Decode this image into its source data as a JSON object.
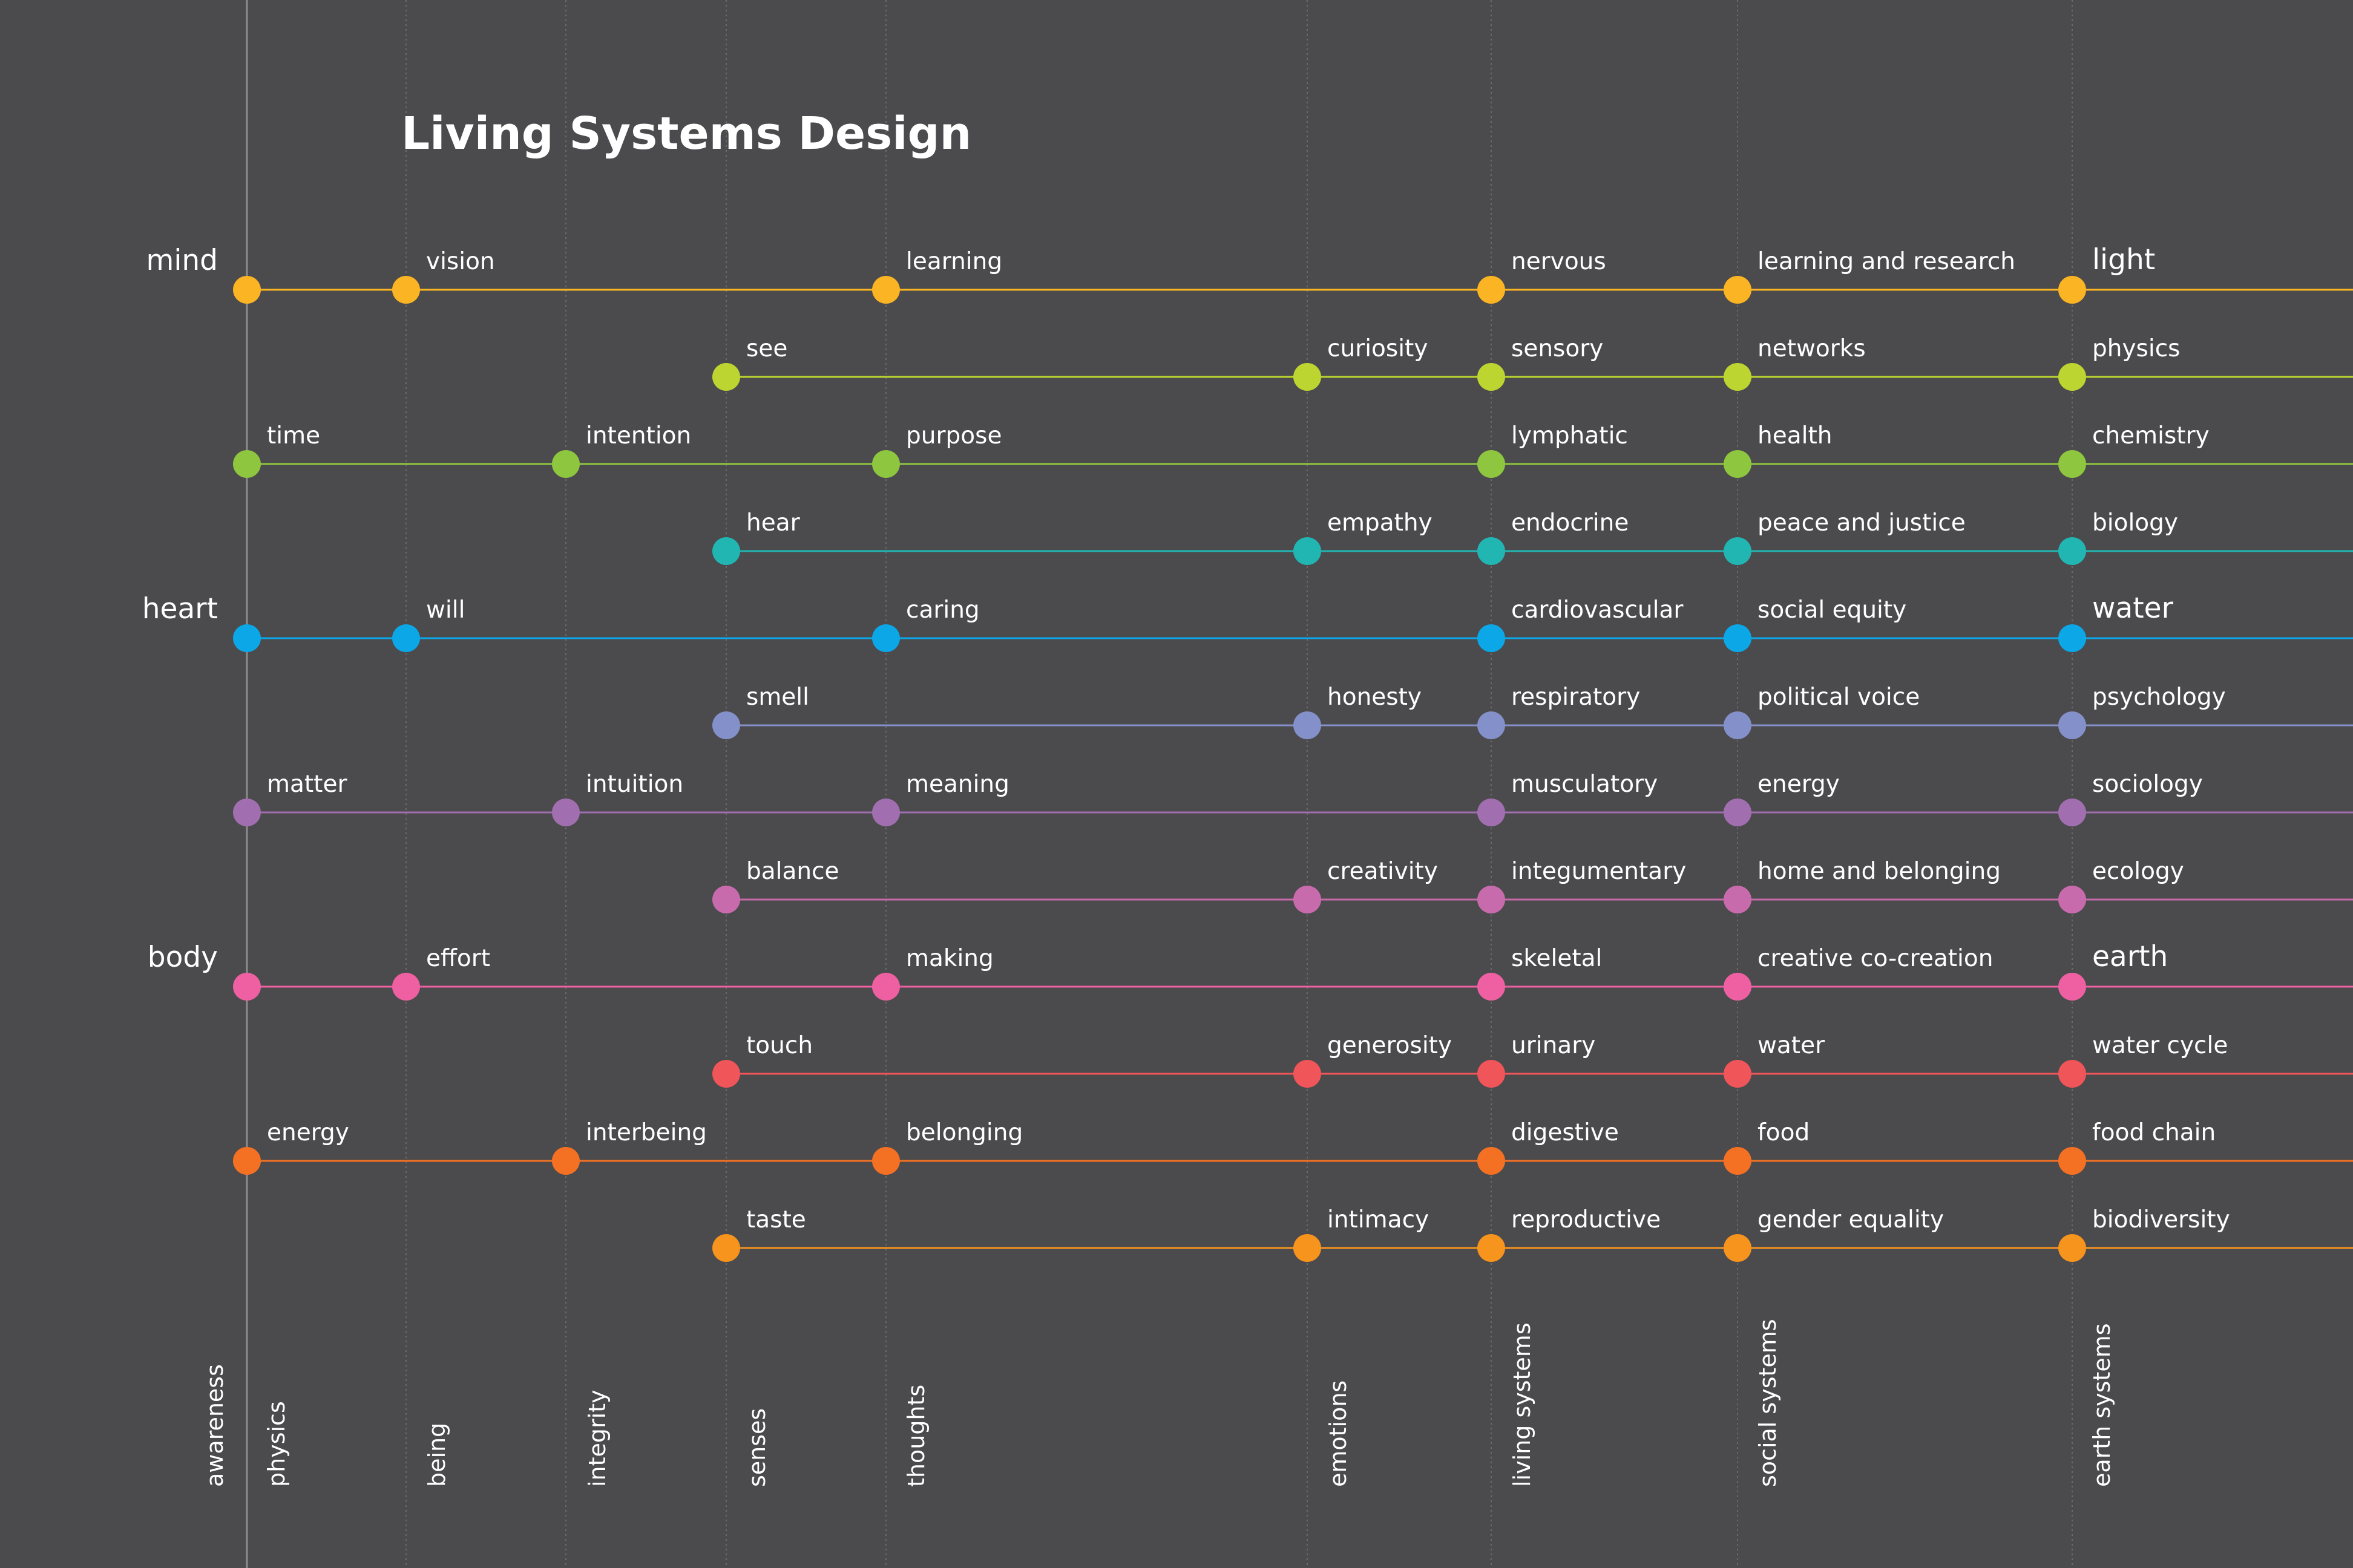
{
  "title": "Living Systems Design",
  "groups": [
    {
      "label": "mind",
      "row": 0
    },
    {
      "label": "heart",
      "row": 4
    },
    {
      "label": "body",
      "row": 8
    }
  ],
  "columns": [
    "awareness",
    "physics",
    "being",
    "integrity",
    "senses",
    "thoughts",
    "emotions",
    "living systems",
    "social systems",
    "earth systems"
  ],
  "rows": [
    {
      "color": "#fbb423",
      "nodes": [
        {
          "col": 0,
          "label": ""
        },
        {
          "col": 2,
          "label": "vision"
        },
        {
          "col": 5,
          "label": "learning"
        },
        {
          "col": 7,
          "label": "nervous"
        },
        {
          "col": 8,
          "label": "learning and research"
        },
        {
          "col": 9,
          "label": "light",
          "large": true
        }
      ]
    },
    {
      "color": "#bdd530",
      "nodes": [
        {
          "col": 4,
          "label": "see"
        },
        {
          "col": 6,
          "label": "curiosity"
        },
        {
          "col": 7,
          "label": "sensory"
        },
        {
          "col": 8,
          "label": "networks"
        },
        {
          "col": 9,
          "label": "physics"
        }
      ]
    },
    {
      "color": "#8ec63f",
      "nodes": [
        {
          "col": 1,
          "label": "time"
        },
        {
          "col": 3,
          "label": "intention"
        },
        {
          "col": 5,
          "label": "purpose"
        },
        {
          "col": 7,
          "label": "lymphatic"
        },
        {
          "col": 8,
          "label": "health"
        },
        {
          "col": 9,
          "label": "chemistry"
        }
      ]
    },
    {
      "color": "#22b6b3",
      "nodes": [
        {
          "col": 4,
          "label": "hear"
        },
        {
          "col": 6,
          "label": "empathy"
        },
        {
          "col": 7,
          "label": "endocrine"
        },
        {
          "col": 8,
          "label": "peace and justice"
        },
        {
          "col": 9,
          "label": "biology"
        }
      ]
    },
    {
      "color": "#0ca7e7",
      "nodes": [
        {
          "col": 0,
          "label": ""
        },
        {
          "col": 2,
          "label": "will"
        },
        {
          "col": 5,
          "label": "caring"
        },
        {
          "col": 7,
          "label": "cardiovascular"
        },
        {
          "col": 8,
          "label": "social equity"
        },
        {
          "col": 9,
          "label": "water",
          "large": true
        }
      ]
    },
    {
      "color": "#8490c9",
      "nodes": [
        {
          "col": 4,
          "label": "smell"
        },
        {
          "col": 6,
          "label": "honesty"
        },
        {
          "col": 7,
          "label": "respiratory"
        },
        {
          "col": 8,
          "label": "political voice"
        },
        {
          "col": 9,
          "label": "psychology"
        }
      ]
    },
    {
      "color": "#a16fb0",
      "nodes": [
        {
          "col": 0,
          "label": "matter"
        },
        {
          "col": 3,
          "label": "intuition"
        },
        {
          "col": 5,
          "label": "meaning"
        },
        {
          "col": 7,
          "label": "musculatory"
        },
        {
          "col": 8,
          "label": "energy"
        },
        {
          "col": 9,
          "label": "sociology"
        }
      ]
    },
    {
      "color": "#c86bac",
      "nodes": [
        {
          "col": 4,
          "label": "balance"
        },
        {
          "col": 6,
          "label": "creativity"
        },
        {
          "col": 7,
          "label": "integumentary"
        },
        {
          "col": 8,
          "label": "home and belonging"
        },
        {
          "col": 9,
          "label": "ecology"
        }
      ]
    },
    {
      "color": "#ee60a1",
      "nodes": [
        {
          "col": 0,
          "label": ""
        },
        {
          "col": 2,
          "label": "effort"
        },
        {
          "col": 5,
          "label": "making"
        },
        {
          "col": 7,
          "label": "skeletal"
        },
        {
          "col": 8,
          "label": "creative co-creation"
        },
        {
          "col": 9,
          "label": "earth",
          "large": true
        }
      ]
    },
    {
      "color": "#ef5559",
      "nodes": [
        {
          "col": 4,
          "label": "touch"
        },
        {
          "col": 6,
          "label": "generosity"
        },
        {
          "col": 7,
          "label": "urinary"
        },
        {
          "col": 8,
          "label": "water"
        },
        {
          "col": 9,
          "label": "water cycle"
        }
      ]
    },
    {
      "color": "#f47124",
      "nodes": [
        {
          "col": 0,
          "label": "energy"
        },
        {
          "col": 3,
          "label": "interbeing"
        },
        {
          "col": 5,
          "label": "belonging"
        },
        {
          "col": 7,
          "label": "digestive"
        },
        {
          "col": 8,
          "label": "food"
        },
        {
          "col": 9,
          "label": "food chain"
        }
      ]
    },
    {
      "color": "#f7941e",
      "nodes": [
        {
          "col": 4,
          "label": "taste"
        },
        {
          "col": 6,
          "label": "intimacy"
        },
        {
          "col": 7,
          "label": "reproductive"
        },
        {
          "col": 8,
          "label": "gender equality"
        },
        {
          "col": 9,
          "label": "biodiversity"
        }
      ]
    }
  ]
}
